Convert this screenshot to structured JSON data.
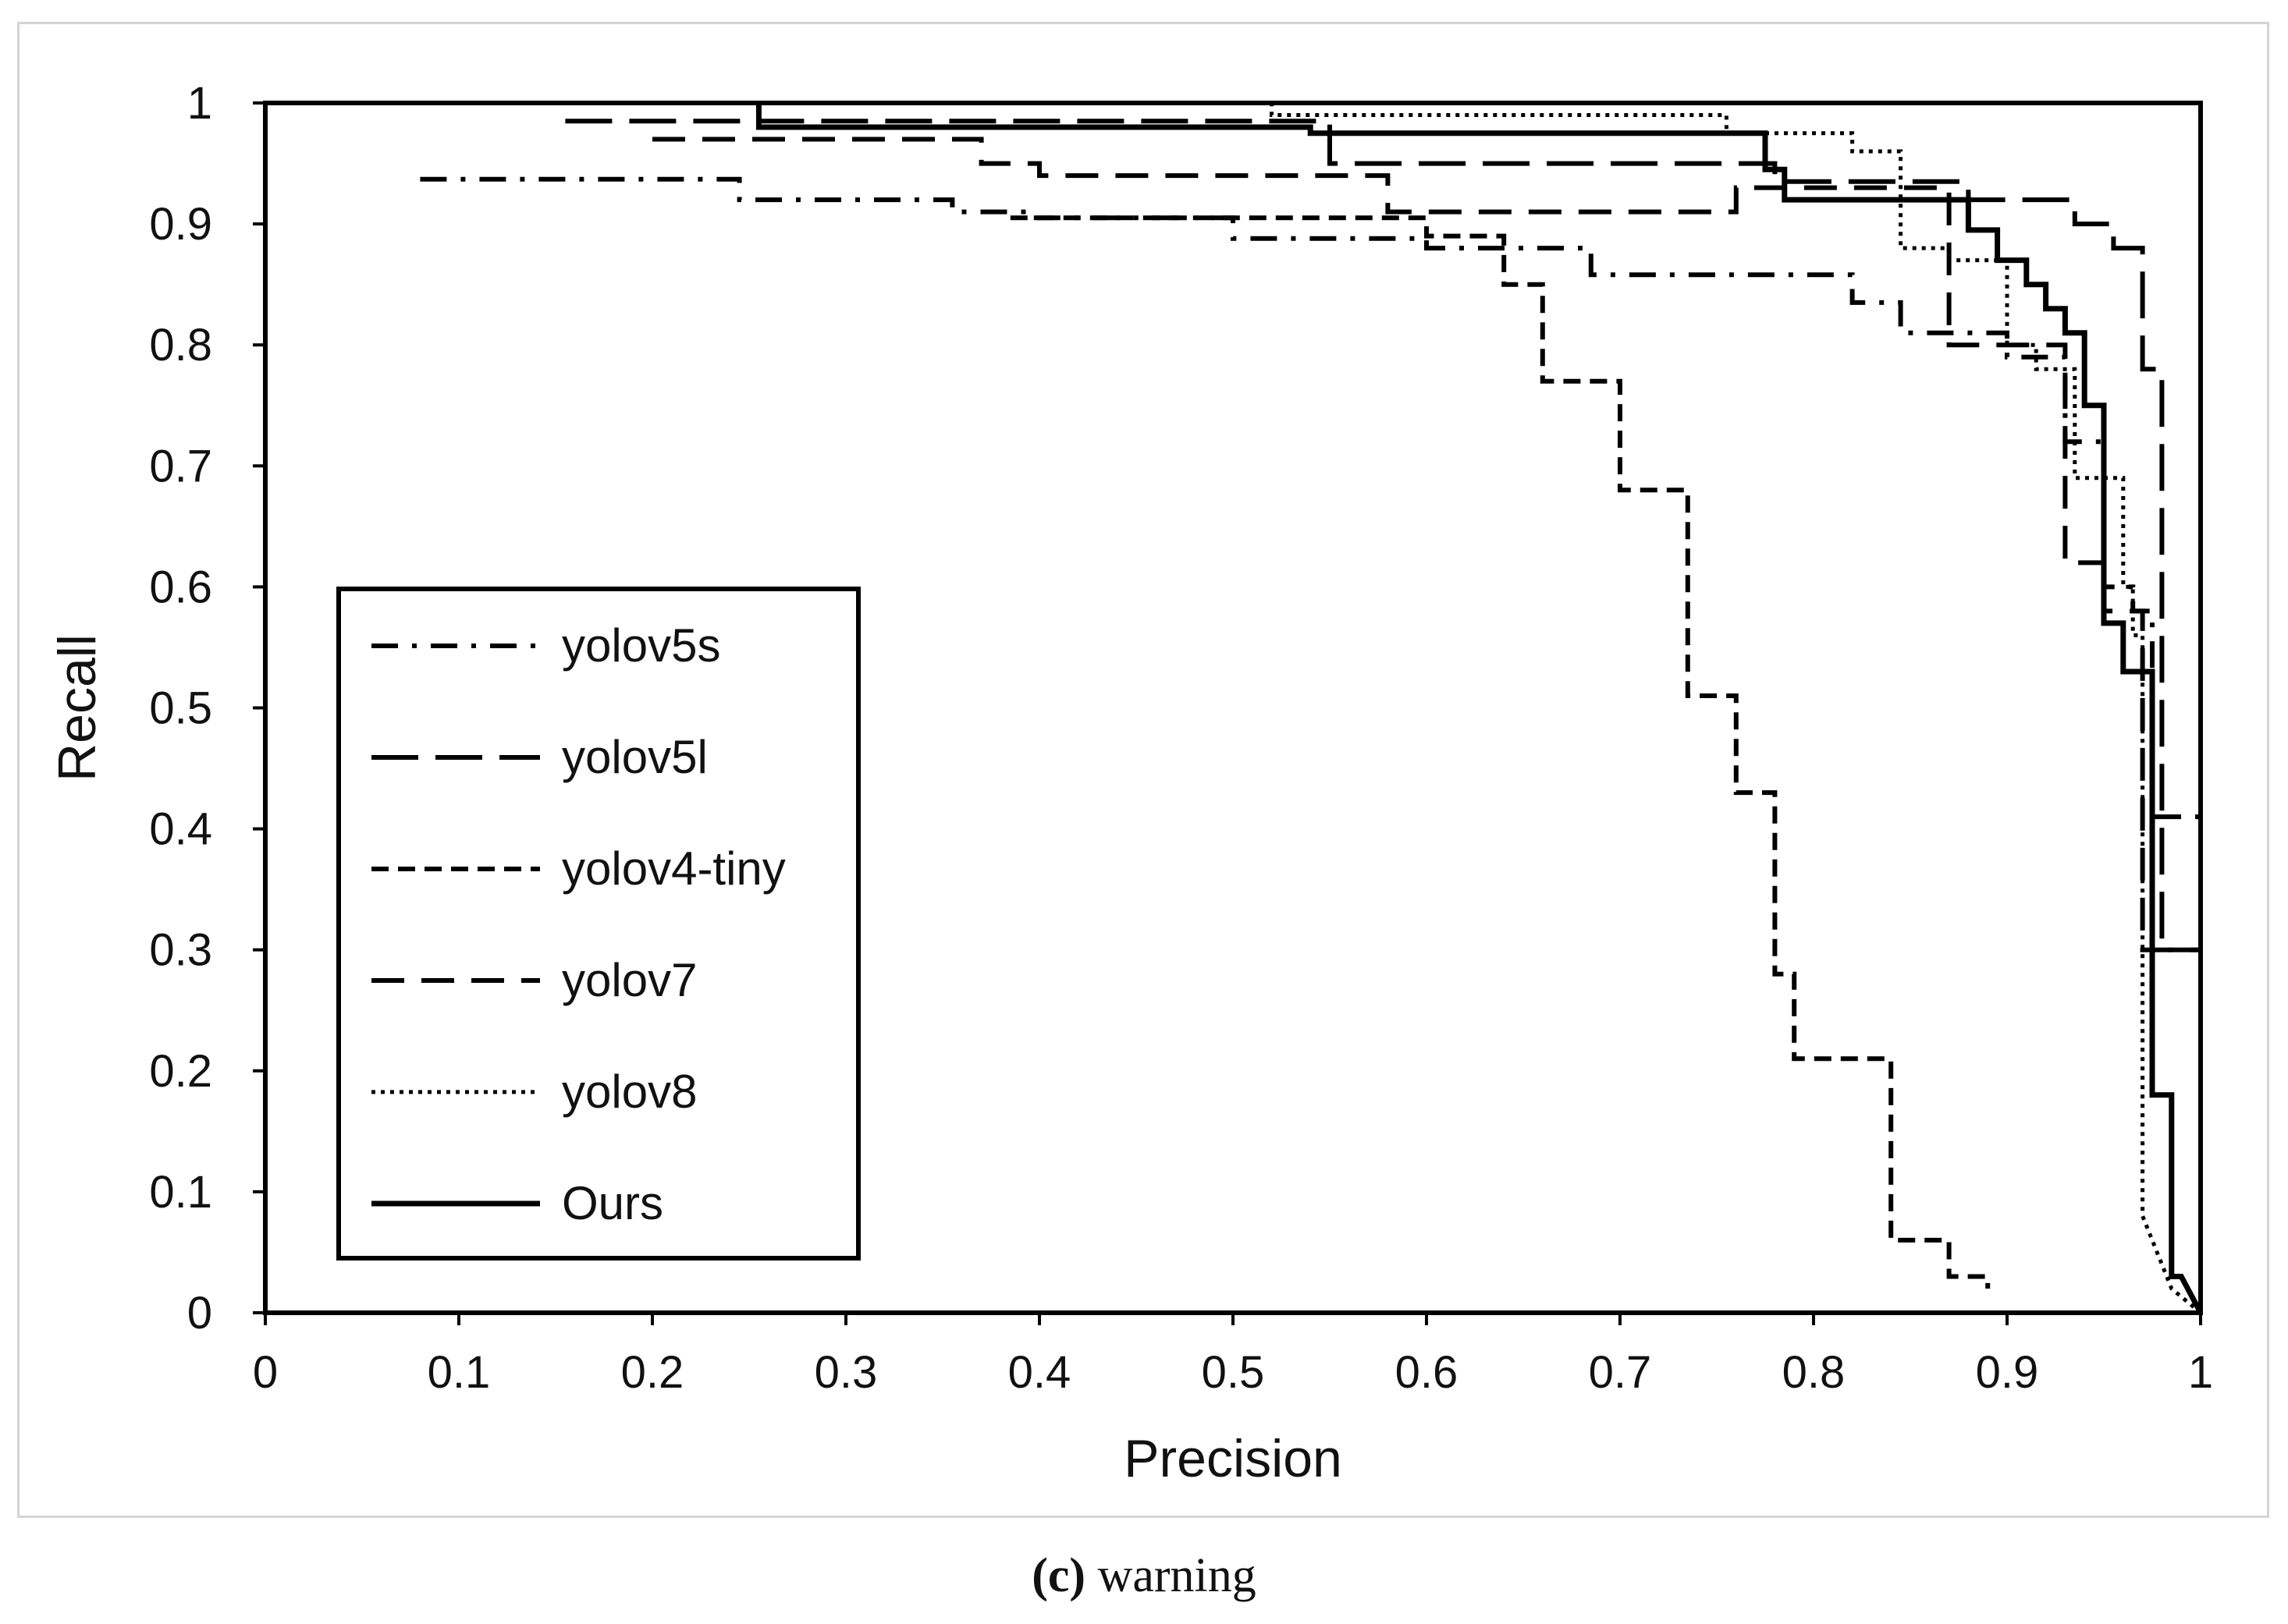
{
  "chart_data": {
    "type": "line",
    "title": "",
    "xlabel": "Precision",
    "ylabel": "Recall",
    "xlim": [
      0,
      1
    ],
    "ylim": [
      0,
      1
    ],
    "xticks": [
      0,
      0.1,
      0.2,
      0.3,
      0.4,
      0.5,
      0.6,
      0.7,
      0.8,
      0.9,
      1
    ],
    "yticks": [
      0,
      0.1,
      0.2,
      0.3,
      0.4,
      0.5,
      0.6,
      0.7,
      0.8,
      0.9,
      1
    ],
    "xtick_labels": [
      "0",
      "0.1",
      "0.2",
      "0.3",
      "0.4",
      "0.5",
      "0.6",
      "0.7",
      "0.8",
      "0.9",
      "1"
    ],
    "ytick_labels": [
      "0",
      "0.1",
      "0.2",
      "0.3",
      "0.4",
      "0.5",
      "0.6",
      "0.7",
      "0.8",
      "0.9",
      "1"
    ],
    "grid": false,
    "legend_position": "left-center",
    "series": [
      {
        "name": "yolov5s",
        "style": "dash-dot",
        "x": [
          0.08,
          0.245,
          0.245,
          0.355,
          0.355,
          0.395,
          0.395,
          0.5,
          0.5,
          0.6,
          0.6,
          0.685,
          0.685,
          0.82,
          0.82,
          0.845,
          0.845,
          0.9,
          0.9,
          0.93,
          0.93,
          0.95,
          0.95,
          0.965,
          0.965,
          0.975,
          0.975,
          1.0
        ],
        "y": [
          0.937,
          0.937,
          0.92,
          0.92,
          0.91,
          0.91,
          0.905,
          0.905,
          0.888,
          0.888,
          0.88,
          0.88,
          0.858,
          0.858,
          0.835,
          0.835,
          0.81,
          0.81,
          0.79,
          0.79,
          0.72,
          0.72,
          0.6,
          0.6,
          0.58,
          0.58,
          0.41,
          0.41
        ]
      },
      {
        "name": "yolov5l",
        "style": "long-dash",
        "x": [
          0.155,
          0.55,
          0.55,
          0.78,
          0.78,
          0.88,
          0.88,
          0.935,
          0.935,
          0.955,
          0.955,
          0.97,
          0.97,
          0.98,
          0.98,
          1.0
        ],
        "y": [
          0.985,
          0.985,
          0.95,
          0.95,
          0.935,
          0.935,
          0.92,
          0.92,
          0.9,
          0.9,
          0.88,
          0.88,
          0.78,
          0.78,
          0.3,
          0.3
        ]
      },
      {
        "name": "yolov4-tiny",
        "style": "short-dash",
        "x": [
          0.385,
          0.6,
          0.6,
          0.64,
          0.64,
          0.66,
          0.66,
          0.7,
          0.7,
          0.735,
          0.735,
          0.76,
          0.76,
          0.78,
          0.78,
          0.79,
          0.79,
          0.84,
          0.84,
          0.87,
          0.87,
          0.89,
          0.89
        ],
        "y": [
          0.905,
          0.905,
          0.89,
          0.89,
          0.85,
          0.85,
          0.77,
          0.77,
          0.68,
          0.68,
          0.51,
          0.51,
          0.43,
          0.43,
          0.28,
          0.28,
          0.21,
          0.21,
          0.06,
          0.06,
          0.03,
          0.03,
          0.02
        ]
      },
      {
        "name": "yolov7",
        "style": "dash",
        "x": [
          0.2,
          0.37,
          0.37,
          0.4,
          0.4,
          0.58,
          0.58,
          0.76,
          0.76,
          0.87,
          0.87,
          0.93,
          0.93,
          0.95,
          0.95,
          0.97,
          0.97,
          1.0
        ],
        "y": [
          0.97,
          0.97,
          0.95,
          0.95,
          0.94,
          0.94,
          0.91,
          0.91,
          0.93,
          0.93,
          0.8,
          0.8,
          0.62,
          0.62,
          0.58,
          0.58,
          0.3,
          0.3
        ]
      },
      {
        "name": "yolov8",
        "style": "dotted",
        "x": [
          0.51,
          0.52,
          0.52,
          0.755,
          0.755,
          0.82,
          0.82,
          0.845,
          0.845,
          0.87,
          0.87,
          0.9,
          0.9,
          0.915,
          0.915,
          0.935,
          0.935,
          0.96,
          0.96,
          0.965,
          0.965,
          0.97,
          0.97,
          0.985,
          1.0
        ],
        "y": [
          1.0,
          1.0,
          0.99,
          0.99,
          0.975,
          0.975,
          0.96,
          0.96,
          0.88,
          0.88,
          0.87,
          0.87,
          0.8,
          0.8,
          0.78,
          0.78,
          0.69,
          0.69,
          0.6,
          0.6,
          0.56,
          0.56,
          0.08,
          0.02,
          0.0
        ]
      },
      {
        "name": "Ours",
        "style": "solid",
        "x": [
          0.255,
          0.255,
          0.54,
          0.54,
          0.775,
          0.775,
          0.785,
          0.785,
          0.88,
          0.88,
          0.895,
          0.895,
          0.91,
          0.91,
          0.92,
          0.92,
          0.93,
          0.93,
          0.94,
          0.94,
          0.95,
          0.95,
          0.96,
          0.96,
          0.975,
          0.975,
          0.985,
          0.985,
          0.99,
          1.0
        ],
        "y": [
          1.0,
          0.98,
          0.98,
          0.975,
          0.975,
          0.945,
          0.945,
          0.92,
          0.92,
          0.895,
          0.895,
          0.87,
          0.87,
          0.85,
          0.85,
          0.83,
          0.83,
          0.81,
          0.81,
          0.75,
          0.75,
          0.57,
          0.57,
          0.53,
          0.53,
          0.18,
          0.18,
          0.03,
          0.03,
          0.0
        ]
      }
    ]
  },
  "caption": {
    "label": "(c)",
    "text": "warning"
  }
}
